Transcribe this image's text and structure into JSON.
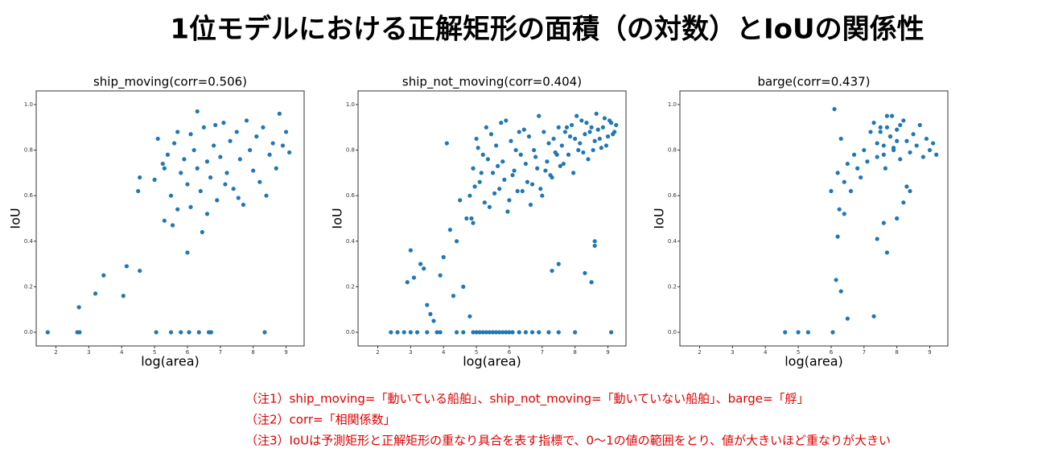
{
  "title": "1位モデルにおける正解矩形の面積（の対数）とIoUの関係性",
  "notes": [
    "（注1）ship_moving=「動いている船舶」、ship_not_moving=「動いていない船舶」、barge=「艀」",
    "（注2）corr=「相関係数」",
    "（注3）IoUは予測矩形と正解矩形の重なり具合を表す指標で、0～1の値の範囲をとり、値が大きいほど重なりが大きい"
  ],
  "chart_data": [
    {
      "type": "scatter",
      "title": "ship_moving(corr=0.506)",
      "xlabel": "log(area)",
      "ylabel": "IoU",
      "color": "#1f77b4",
      "xlim": [
        1.4,
        9.55
      ],
      "ylim": [
        -0.06,
        1.06
      ],
      "xticks": [
        2,
        3,
        4,
        5,
        6,
        7,
        8,
        9
      ],
      "yticks": [
        {
          "value": 0,
          "label": "0.0"
        },
        {
          "value": 0.2,
          "label": "0.2"
        },
        {
          "value": 0.4,
          "label": "0.4"
        },
        {
          "value": 0.6,
          "label": "0.6"
        },
        {
          "value": 0.8,
          "label": "0.8"
        },
        {
          "value": 1,
          "label": "1.0"
        }
      ],
      "x": [
        1.75,
        2.65,
        2.72,
        5.05,
        5.5,
        5.8,
        6.05,
        6.35,
        6.65,
        6.72,
        8.35,
        2.7,
        3.2,
        3.45,
        4.05,
        4.15,
        4.55,
        6.0,
        6.45,
        5.3,
        5.55,
        5.7,
        4.5,
        4.55,
        5.0,
        5.1,
        5.3,
        5.4,
        5.5,
        5.6,
        5.7,
        5.8,
        5.9,
        6.0,
        6.1,
        6.2,
        6.3,
        6.3,
        6.4,
        6.5,
        6.6,
        6.7,
        6.8,
        6.9,
        7.0,
        7.1,
        7.2,
        7.3,
        7.4,
        7.5,
        7.6,
        7.7,
        7.8,
        7.9,
        8.0,
        8.1,
        8.2,
        8.3,
        8.4,
        8.5,
        8.6,
        8.7,
        8.8,
        8.9,
        9.0,
        9.1,
        6.1,
        6.6,
        7.15,
        7.55,
        5.25,
        6.85
      ],
      "values": [
        0,
        0,
        0,
        0,
        0,
        0,
        0,
        0,
        0,
        0,
        0,
        0.11,
        0.17,
        0.25,
        0.16,
        0.29,
        0.27,
        0.35,
        0.44,
        0.49,
        0.47,
        0.54,
        0.62,
        0.68,
        0.67,
        0.85,
        0.72,
        0.78,
        0.6,
        0.83,
        0.88,
        0.7,
        0.76,
        0.65,
        0.87,
        0.8,
        0.97,
        0.72,
        0.62,
        0.9,
        0.75,
        0.68,
        0.82,
        0.58,
        0.77,
        0.92,
        0.7,
        0.84,
        0.63,
        0.88,
        0.76,
        0.56,
        0.93,
        0.8,
        0.71,
        0.86,
        0.66,
        0.9,
        0.6,
        0.78,
        0.83,
        0.72,
        0.96,
        0.82,
        0.88,
        0.79,
        0.55,
        0.52,
        0.65,
        0.59,
        0.74,
        0.91
      ]
    },
    {
      "type": "scatter",
      "title": "ship_not_moving(corr=0.404)",
      "xlabel": "log(area)",
      "ylabel": "IoU",
      "color": "#1f77b4",
      "xlim": [
        1.4,
        9.55
      ],
      "ylim": [
        -0.06,
        1.06
      ],
      "xticks": [
        2,
        3,
        4,
        5,
        6,
        7,
        8,
        9
      ],
      "yticks": [
        {
          "value": 0,
          "label": "0.0"
        },
        {
          "value": 0.2,
          "label": "0.2"
        },
        {
          "value": 0.4,
          "label": "0.4"
        },
        {
          "value": 0.6,
          "label": "0.6"
        },
        {
          "value": 0.8,
          "label": "0.8"
        },
        {
          "value": 1,
          "label": "1.0"
        }
      ],
      "x": [
        2.4,
        2.6,
        2.8,
        3.0,
        3.2,
        3.5,
        3.8,
        3.9,
        4.4,
        4.6,
        4.9,
        5.0,
        5.1,
        5.2,
        5.3,
        5.4,
        5.5,
        5.6,
        5.7,
        5.8,
        5.9,
        6.0,
        6.1,
        6.3,
        6.5,
        6.7,
        6.9,
        7.2,
        7.5,
        8.0,
        9.1,
        3.0,
        3.1,
        3.3,
        3.5,
        3.7,
        3.9,
        4.0,
        4.2,
        4.3,
        4.5,
        4.6,
        4.8,
        3.4,
        4.4,
        4.9,
        7.3,
        7.5,
        8.5,
        8.6,
        8.6,
        8.3,
        4.7,
        4.1,
        3.6,
        2.9,
        4.8,
        4.9,
        5.0,
        5.1,
        5.2,
        5.3,
        5.4,
        5.5,
        5.6,
        5.7,
        5.8,
        5.9,
        6.0,
        6.1,
        6.2,
        6.3,
        6.4,
        6.5,
        6.6,
        6.7,
        6.8,
        6.9,
        7.0,
        7.1,
        7.2,
        7.3,
        7.4,
        7.5,
        4.85,
        4.95,
        5.05,
        5.15,
        5.25,
        5.35,
        5.45,
        5.55,
        5.65,
        5.75,
        5.85,
        5.95,
        6.05,
        6.15,
        6.25,
        6.35,
        6.45,
        6.55,
        6.65,
        6.75,
        6.85,
        6.95,
        7.05,
        7.15,
        7.25,
        7.35,
        7.45,
        7.55,
        7.6,
        7.7,
        7.8,
        7.9,
        8.0,
        8.1,
        8.2,
        8.3,
        8.4,
        8.5,
        8.6,
        8.7,
        8.8,
        8.9,
        9.0,
        9.1,
        9.2,
        7.65,
        7.75,
        7.85,
        7.95,
        8.05,
        8.15,
        8.25,
        8.35,
        8.45,
        8.55,
        8.65,
        8.75,
        8.85,
        8.95,
        9.05,
        9.15,
        9.25
      ],
      "values": [
        0,
        0,
        0,
        0,
        0,
        0,
        0,
        0,
        0,
        0,
        0,
        0,
        0,
        0,
        0,
        0,
        0,
        0,
        0,
        0,
        0,
        0,
        0,
        0,
        0,
        0,
        0,
        0,
        0,
        0,
        0,
        0.36,
        0.24,
        0.3,
        0.12,
        0.05,
        0.25,
        0.33,
        0.45,
        0.16,
        0.58,
        0.2,
        0.07,
        0.28,
        0.4,
        0.48,
        0.27,
        0.3,
        0.22,
        0.38,
        0.4,
        0.26,
        0.5,
        0.83,
        0.08,
        0.22,
        0.6,
        0.72,
        0.85,
        0.66,
        0.78,
        0.9,
        0.55,
        0.7,
        0.82,
        0.63,
        0.75,
        0.93,
        0.58,
        0.69,
        0.8,
        0.88,
        0.62,
        0.74,
        0.86,
        0.65,
        0.77,
        0.95,
        0.6,
        0.71,
        0.83,
        0.68,
        0.79,
        0.9,
        0.5,
        0.64,
        0.81,
        0.7,
        0.57,
        0.76,
        0.87,
        0.61,
        0.73,
        0.92,
        0.67,
        0.53,
        0.84,
        0.71,
        0.62,
        0.78,
        0.89,
        0.66,
        0.56,
        0.8,
        0.72,
        0.63,
        0.88,
        0.75,
        0.69,
        0.85,
        0.78,
        0.73,
        0.82,
        0.88,
        0.78,
        0.91,
        0.85,
        0.8,
        0.93,
        0.87,
        0.76,
        0.9,
        0.84,
        0.89,
        0.81,
        0.94,
        0.86,
        0.92,
        0.88,
        0.74,
        0.9,
        0.86,
        0.7,
        0.95,
        0.83,
        0.79,
        0.92,
        0.88,
        0.8,
        0.96,
        0.85,
        0.9,
        0.82,
        0.93,
        0.87,
        0.91
      ]
    },
    {
      "type": "scatter",
      "title": "barge(corr=0.437)",
      "xlabel": "log(area)",
      "ylabel": "IoU",
      "color": "#1f77b4",
      "xlim": [
        1.4,
        9.55
      ],
      "ylim": [
        -0.06,
        1.06
      ],
      "xticks": [
        2,
        3,
        4,
        5,
        6,
        7,
        8,
        9
      ],
      "yticks": [
        {
          "value": 0,
          "label": "0.0"
        },
        {
          "value": 0.2,
          "label": "0.2"
        },
        {
          "value": 0.4,
          "label": "0.4"
        },
        {
          "value": 0.6,
          "label": "0.6"
        },
        {
          "value": 0.8,
          "label": "0.8"
        },
        {
          "value": 1,
          "label": "1.0"
        }
      ],
      "x": [
        4.6,
        5.0,
        5.3,
        6.05,
        6.2,
        6.15,
        6.3,
        6.4,
        6.25,
        6.5,
        7.3,
        7.4,
        7.7,
        7.6,
        8.2,
        8.4,
        8.3,
        8.0,
        6.0,
        6.1,
        6.2,
        6.3,
        6.4,
        6.5,
        6.6,
        6.7,
        6.8,
        6.9,
        7.0,
        7.1,
        7.2,
        7.3,
        7.4,
        7.5,
        7.6,
        7.7,
        7.8,
        7.9,
        8.0,
        8.1,
        8.2,
        8.3,
        8.4,
        8.5,
        8.6,
        8.7,
        8.8,
        8.9,
        9.0,
        9.1,
        9.2,
        7.5,
        7.6,
        7.7,
        7.8,
        7.9,
        8.0,
        7.4,
        8.1,
        7.65,
        7.85
      ],
      "values": [
        0,
        0,
        0,
        0,
        0.42,
        0.23,
        0.18,
        0.52,
        0.54,
        0.06,
        0.07,
        0.41,
        0.35,
        0.48,
        0.57,
        0.62,
        0.64,
        0.5,
        0.62,
        0.98,
        0.7,
        0.85,
        0.66,
        0.74,
        0.62,
        0.78,
        0.72,
        0.68,
        0.8,
        0.75,
        0.88,
        0.92,
        0.83,
        0.9,
        0.78,
        0.95,
        0.86,
        0.81,
        0.89,
        0.76,
        0.93,
        0.84,
        0.79,
        0.87,
        0.82,
        0.91,
        0.77,
        0.85,
        0.8,
        0.83,
        0.78,
        0.88,
        0.82,
        0.9,
        0.86,
        0.8,
        0.84,
        0.77,
        0.91,
        0.72,
        0.95
      ]
    }
  ]
}
